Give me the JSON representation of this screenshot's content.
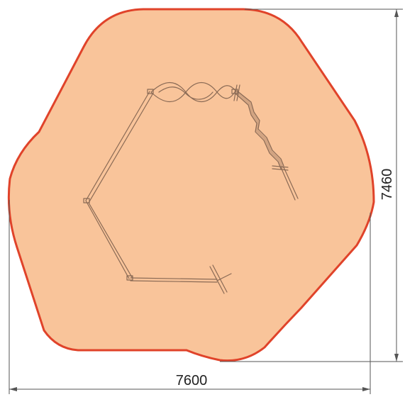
{
  "drawing": {
    "colors": {
      "area_fill": "#f9c49a",
      "area_outline": "#e0432a",
      "equipment_line": "#8a6a55",
      "dimension_line": "#555555"
    },
    "dimensions": {
      "width_label": "7600",
      "height_label": "7460"
    }
  }
}
